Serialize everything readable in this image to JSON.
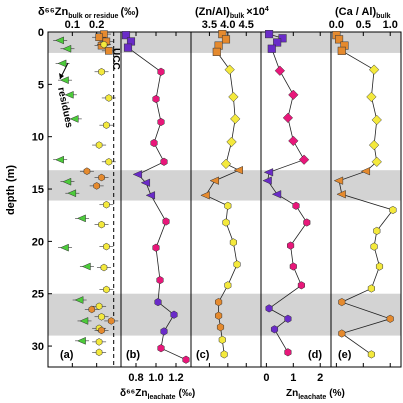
{
  "chart_data": [
    {
      "panel": "(a)",
      "type": "scatter",
      "title": "δ66Zn bulk or residue (‰)",
      "title_main": "δ⁶⁶Zn",
      "title_sub": "bulk or residue",
      "title_unit": "(‰)",
      "xlim": [
        0,
        0.3
      ],
      "ylim": [
        32,
        0
      ],
      "xticks": [
        "0.1",
        "0.2"
      ],
      "xtick_values": [
        0.1,
        0.2
      ],
      "reference_line": {
        "label": "UCC",
        "x": 0.27
      },
      "annotation": "residues",
      "series": [
        {
          "marker": "square",
          "color": "#e58a2e",
          "y": [
            0.2,
            0.5,
            0.9,
            1.3,
            1.8
          ],
          "x": [
            0.23,
            0.21,
            0.24,
            0.22,
            0.25
          ]
        },
        {
          "marker": "triangle",
          "color": "#4ccb3a",
          "y": [
            0.8,
            1.6,
            3.0,
            4.6,
            6.0,
            8.3,
            12.2,
            14.3,
            15.4,
            17.8,
            20.6,
            22.4,
            25.6,
            27.6,
            29.5
          ],
          "x": [
            0.05,
            0.08,
            0.06,
            0.07,
            0.09,
            0.11,
            0.05,
            0.08,
            0.1,
            0.14,
            0.07,
            0.16,
            0.13,
            0.15,
            0.14
          ]
        },
        {
          "marker": "hexagon",
          "color": "#f4e93c",
          "y": [
            1.2,
            3.8,
            6.3,
            8.9,
            10.8,
            12.4,
            16.5,
            18.4,
            20.5,
            22.5,
            24.6,
            26.2,
            27.2,
            28.3,
            29.6,
            30.6
          ],
          "x": [
            0.23,
            0.22,
            0.25,
            0.24,
            0.21,
            0.25,
            0.24,
            0.22,
            0.24,
            0.23,
            0.24,
            0.21,
            0.22,
            0.21,
            0.21,
            0.21
          ]
        },
        {
          "marker": "hexagon",
          "color": "#e58a2e",
          "y": [
            13.3,
            13.9,
            14.7,
            26.5,
            27.6,
            28.5
          ],
          "x": [
            0.16,
            0.22,
            0.2,
            0.18,
            0.26,
            0.22
          ]
        }
      ]
    },
    {
      "panel": "(b)",
      "type": "line",
      "xlabel": "δ66Zn leachate (‰)",
      "xlabel_main": "δ⁶⁶Zn",
      "xlabel_sub": "leachate",
      "xlabel_unit": "(‰)",
      "xlim": [
        0.65,
        1.35
      ],
      "ylim": [
        32,
        0
      ],
      "xticks": [
        "0.8",
        "1.0",
        "1.2"
      ],
      "xtick_values": [
        0.8,
        1.0,
        1.2
      ],
      "depth": [
        0.3,
        0.9,
        1.5,
        3.8,
        6.4,
        8.6,
        10.6,
        12.4,
        13.6,
        14.4,
        15.6,
        18.1,
        20.6,
        23.7,
        25.8,
        27.0,
        28.6,
        30.2,
        31.3
      ],
      "values": [
        0.7,
        0.75,
        0.72,
        1.05,
        1.0,
        1.05,
        0.98,
        1.08,
        0.82,
        0.9,
        0.95,
        1.1,
        1.0,
        1.04,
        1.02,
        1.18,
        1.08,
        1.05,
        1.3
      ],
      "colors": [
        "#6a2bc8",
        "#6a2bc8",
        "#6a2bc8",
        "#e8177a",
        "#e8177a",
        "#e8177a",
        "#e8177a",
        "#e8177a",
        "#6a2bc8",
        "#6a2bc8",
        "#6a2bc8",
        "#e8177a",
        "#e8177a",
        "#e8177a",
        "#6a2bc8",
        "#6a2bc8",
        "#6a2bc8",
        "#e8177a",
        "#e8177a"
      ],
      "marker": [
        "square",
        "square",
        "square",
        "hexagon",
        "hexagon",
        "hexagon",
        "hexagon",
        "hexagon",
        "triangle",
        "triangle",
        "triangle",
        "hexagon",
        "hexagon",
        "hexagon",
        "hexagon",
        "hexagon",
        "hexagon",
        "hexagon",
        "hexagon"
      ]
    },
    {
      "panel": "(c)",
      "type": "line",
      "title": "(Zn/Al) bulk ×10⁴",
      "title_main": "(Zn/Al)",
      "title_sub": "bulk",
      "title_unit": "×10",
      "title_sup": "4",
      "xlim": [
        3.0,
        4.9
      ],
      "ylim": [
        32,
        0
      ],
      "xticks": [
        "3.5",
        "4.0",
        "4.5"
      ],
      "xtick_values": [
        3.5,
        4.0,
        4.5
      ],
      "depth": [
        0.2,
        0.7,
        1.3,
        1.9,
        3.6,
        6.2,
        8.3,
        10.5,
        12.6,
        13.2,
        14.2,
        15.6,
        16.6,
        18.2,
        20.1,
        22.2,
        24.2,
        25.8,
        27.1,
        28.2,
        29.4,
        30.8
      ],
      "values": [
        3.85,
        3.95,
        3.75,
        3.7,
        4.05,
        4.15,
        4.2,
        4.1,
        3.95,
        4.3,
        3.65,
        3.4,
        4.0,
        3.95,
        4.15,
        4.25,
        4.0,
        3.75,
        3.75,
        3.8,
        3.85,
        3.9
      ],
      "colors": [
        "#e58a2e",
        "#e58a2e",
        "#e58a2e",
        "#e58a2e",
        "#f4e93c",
        "#f4e93c",
        "#f4e93c",
        "#f4e93c",
        "#f4e93c",
        "#e58a2e",
        "#e58a2e",
        "#e58a2e",
        "#f4e93c",
        "#f4e93c",
        "#f4e93c",
        "#f4e93c",
        "#f4e93c",
        "#e58a2e",
        "#e58a2e",
        "#e58a2e",
        "#f4e93c",
        "#f4e93c"
      ],
      "marker": [
        "square",
        "square",
        "square",
        "square",
        "diamond",
        "diamond",
        "diamond",
        "diamond",
        "diamond",
        "triangle",
        "triangle",
        "triangle",
        "hexagon",
        "hexagon",
        "hexagon",
        "hexagon",
        "hexagon",
        "hexagon",
        "hexagon",
        "hexagon",
        "hexagon",
        "hexagon"
      ]
    },
    {
      "panel": "(d)",
      "type": "line",
      "xlabel": "Zn leachate (%)",
      "xlabel_main": "Zn",
      "xlabel_sub": "leachate",
      "xlabel_unit": "(%)",
      "xlim": [
        -0.2,
        2.4
      ],
      "ylim": [
        32,
        0
      ],
      "xticks": [
        "0",
        "1",
        "2"
      ],
      "xtick_values": [
        0,
        1,
        2
      ],
      "depth": [
        0.2,
        0.6,
        1.0,
        1.6,
        3.7,
        6.0,
        8.2,
        10.4,
        12.2,
        13.4,
        14.2,
        15.5,
        16.6,
        18.2,
        20.4,
        22.4,
        24.2,
        26.4,
        27.4,
        28.4,
        30.6
      ],
      "values": [
        0.1,
        0.6,
        0.4,
        0.2,
        0.5,
        1.0,
        0.8,
        1.0,
        1.4,
        0.1,
        0.05,
        0.4,
        1.1,
        1.5,
        0.9,
        1.0,
        1.3,
        0.1,
        0.8,
        0.3,
        0.8
      ],
      "colors": [
        "#6a2bc8",
        "#6a2bc8",
        "#6a2bc8",
        "#6a2bc8",
        "#e8177a",
        "#e8177a",
        "#e8177a",
        "#e8177a",
        "#e8177a",
        "#6a2bc8",
        "#6a2bc8",
        "#6a2bc8",
        "#e8177a",
        "#e8177a",
        "#e8177a",
        "#e8177a",
        "#e8177a",
        "#6a2bc8",
        "#6a2bc8",
        "#6a2bc8",
        "#e8177a"
      ],
      "marker": [
        "square",
        "square",
        "square",
        "square",
        "diamond",
        "diamond",
        "diamond",
        "diamond",
        "diamond",
        "triangle",
        "triangle",
        "triangle",
        "hexagon",
        "hexagon",
        "hexagon",
        "hexagon",
        "hexagon",
        "hexagon",
        "hexagon",
        "hexagon",
        "hexagon"
      ]
    },
    {
      "panel": "(e)",
      "type": "line",
      "title": "(Ca / Al) bulk",
      "title_main": "(Ca / Al)",
      "title_sub": "bulk",
      "xlim": [
        -0.1,
        1.2
      ],
      "ylim": [
        32,
        0
      ],
      "xticks": [
        "0.0",
        "0.5",
        "1.0"
      ],
      "xtick_values": [
        0.0,
        0.5,
        1.0
      ],
      "depth": [
        0.3,
        0.7,
        1.3,
        1.8,
        3.6,
        6.2,
        8.4,
        10.8,
        12.4,
        13.3,
        14.2,
        15.5,
        17.0,
        19.0,
        20.5,
        22.4,
        24.5,
        25.8,
        27.4,
        28.8,
        30.8
      ],
      "values": [
        0.0,
        0.05,
        0.15,
        0.1,
        0.7,
        0.65,
        0.75,
        0.7,
        0.75,
        0.55,
        0.05,
        0.1,
        1.05,
        0.75,
        0.7,
        0.8,
        0.65,
        0.1,
        1.0,
        0.1,
        0.65
      ],
      "colors": [
        "#e58a2e",
        "#e58a2e",
        "#e58a2e",
        "#e58a2e",
        "#f4e93c",
        "#f4e93c",
        "#f4e93c",
        "#f4e93c",
        "#f4e93c",
        "#e58a2e",
        "#e58a2e",
        "#e58a2e",
        "#f4e93c",
        "#f4e93c",
        "#f4e93c",
        "#f4e93c",
        "#f4e93c",
        "#e58a2e",
        "#e58a2e",
        "#e58a2e",
        "#f4e93c"
      ],
      "marker": [
        "square",
        "square",
        "square",
        "square",
        "diamond",
        "diamond",
        "diamond",
        "diamond",
        "diamond",
        "triangle",
        "triangle",
        "triangle",
        "hexagon",
        "hexagon",
        "hexagon",
        "hexagon",
        "hexagon",
        "hexagon",
        "hexagon",
        "hexagon",
        "hexagon"
      ]
    }
  ],
  "depth_axis": {
    "label": "depth (m)",
    "ticks": [
      "0",
      "5",
      "10",
      "15",
      "20",
      "25",
      "30"
    ],
    "tick_values": [
      0,
      5,
      10,
      15,
      20,
      25,
      30
    ],
    "shaded_bands": [
      [
        0,
        2
      ],
      [
        13.2,
        16.1
      ],
      [
        25,
        29
      ]
    ]
  }
}
